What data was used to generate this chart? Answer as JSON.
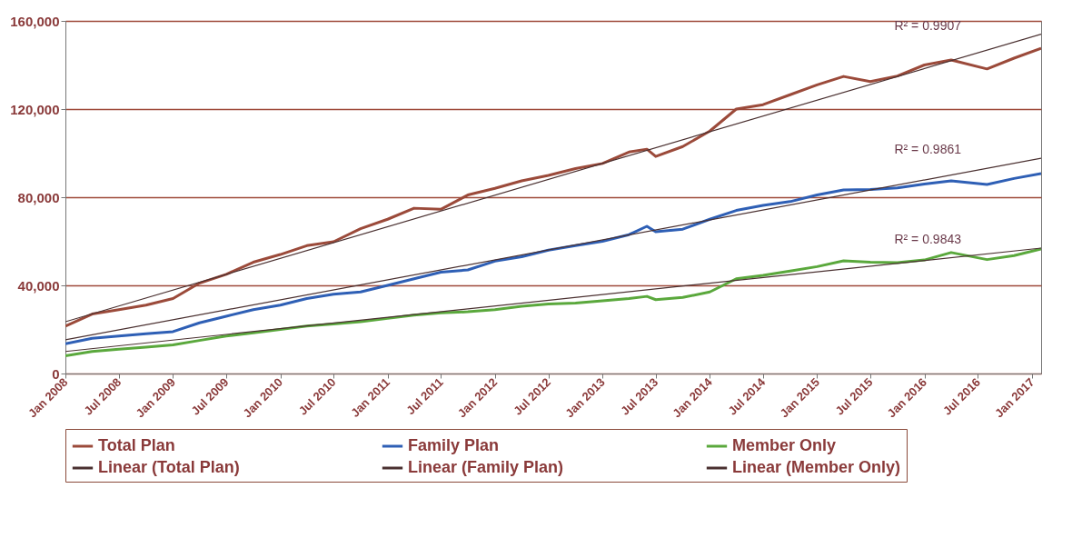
{
  "chart_data": {
    "type": "line",
    "x": [
      "2008-01",
      "2008-04",
      "2008-07",
      "2008-10",
      "2009-01",
      "2009-04",
      "2009-07",
      "2009-10",
      "2010-01",
      "2010-04",
      "2010-07",
      "2010-10",
      "2011-01",
      "2011-04",
      "2011-07",
      "2011-10",
      "2012-01",
      "2012-04",
      "2012-07",
      "2012-10",
      "2013-01",
      "2013-04",
      "2013-06",
      "2013-07",
      "2013-10",
      "2014-01",
      "2014-04",
      "2014-07",
      "2014-10",
      "2015-01",
      "2015-04",
      "2015-07",
      "2015-10",
      "2016-01",
      "2016-04",
      "2016-08",
      "2016-11",
      "2017-02"
    ],
    "series": [
      {
        "name": "Total Plan",
        "color": "#9b4a3a",
        "values": [
          21500,
          27000,
          29000,
          31000,
          34000,
          41000,
          45000,
          50500,
          54000,
          58000,
          59800,
          65700,
          70000,
          75000,
          74500,
          81000,
          84000,
          87400,
          89900,
          93000,
          95300,
          100500,
          101800,
          98500,
          103000,
          110000,
          120000,
          122000,
          126500,
          131000,
          134800,
          132500,
          135000,
          140000,
          142300,
          138200,
          143100,
          147600
        ]
      },
      {
        "name": "Family Plan",
        "color": "#2e5fb5",
        "values": [
          13500,
          16000,
          17000,
          18000,
          19000,
          23000,
          26000,
          29000,
          31000,
          34000,
          36000,
          37000,
          40000,
          43000,
          46000,
          47000,
          51000,
          53000,
          56000,
          58000,
          60000,
          63000,
          66800,
          64300,
          65500,
          70000,
          74000,
          76300,
          78000,
          81000,
          83300,
          83500,
          84200,
          86000,
          87400,
          85800,
          88500,
          90700
        ]
      },
      {
        "name": "Member Only",
        "color": "#5aa83c",
        "values": [
          8000,
          10000,
          11000,
          12000,
          13000,
          15000,
          17000,
          18500,
          20000,
          21500,
          22500,
          23500,
          25000,
          26500,
          27500,
          28000,
          29000,
          30500,
          31500,
          32000,
          33000,
          34000,
          35000,
          33500,
          34500,
          37000,
          43000,
          44500,
          46500,
          48500,
          51100,
          50500,
          50300,
          51500,
          54900,
          51700,
          53500,
          56500
        ]
      },
      {
        "name": "Linear (Total Plan)",
        "color": "#4a3030",
        "x": [
          "2008-01",
          "2017-02"
        ],
        "values": [
          23500,
          154000
        ]
      },
      {
        "name": "Linear (Family Plan)",
        "color": "#4a3030",
        "x": [
          "2008-01",
          "2017-02"
        ],
        "values": [
          15300,
          97700
        ]
      },
      {
        "name": "Linear (Member Only)",
        "color": "#4a3030",
        "x": [
          "2008-01",
          "2017-02"
        ],
        "values": [
          10000,
          56900
        ]
      }
    ],
    "annotations": [
      "R² = 0.9907",
      "R² = 0.9861",
      "R² = 0.9843"
    ],
    "xlim": [
      "2008-01",
      "2017-02"
    ],
    "xticks": [
      {
        "value": "2008-01",
        "label": "Jan 2008"
      },
      {
        "value": "2008-07",
        "label": "Jul 2008"
      },
      {
        "value": "2009-01",
        "label": "Jan 2009"
      },
      {
        "value": "2009-07",
        "label": "Jul 2009"
      },
      {
        "value": "2010-01",
        "label": "Jan 2010"
      },
      {
        "value": "2010-07",
        "label": "Jul 2010"
      },
      {
        "value": "2011-01",
        "label": "Jan 2011"
      },
      {
        "value": "2011-07",
        "label": "Jul 2011"
      },
      {
        "value": "2012-01",
        "label": "Jan 2012"
      },
      {
        "value": "2012-07",
        "label": "Jul 2012"
      },
      {
        "value": "2013-01",
        "label": "Jan 2013"
      },
      {
        "value": "2013-07",
        "label": "Jul 2013"
      },
      {
        "value": "2014-01",
        "label": "Jan 2014"
      },
      {
        "value": "2014-07",
        "label": "Jul 2014"
      },
      {
        "value": "2015-01",
        "label": "Jan 2015"
      },
      {
        "value": "2015-07",
        "label": "Jul 2015"
      },
      {
        "value": "2016-01",
        "label": "Jan 2016"
      },
      {
        "value": "2016-07",
        "label": "Jul 2016"
      },
      {
        "value": "2017-01",
        "label": "Jan 2017"
      }
    ],
    "ylim": [
      0,
      160000
    ],
    "yticks": [
      {
        "value": 0,
        "label": "0"
      },
      {
        "value": 40000,
        "label": "40,000"
      },
      {
        "value": 80000,
        "label": "80,000"
      },
      {
        "value": 120000,
        "label": "120,000"
      },
      {
        "value": 160000,
        "label": "160,000"
      }
    ],
    "grid": "y",
    "legend": "bottom"
  }
}
